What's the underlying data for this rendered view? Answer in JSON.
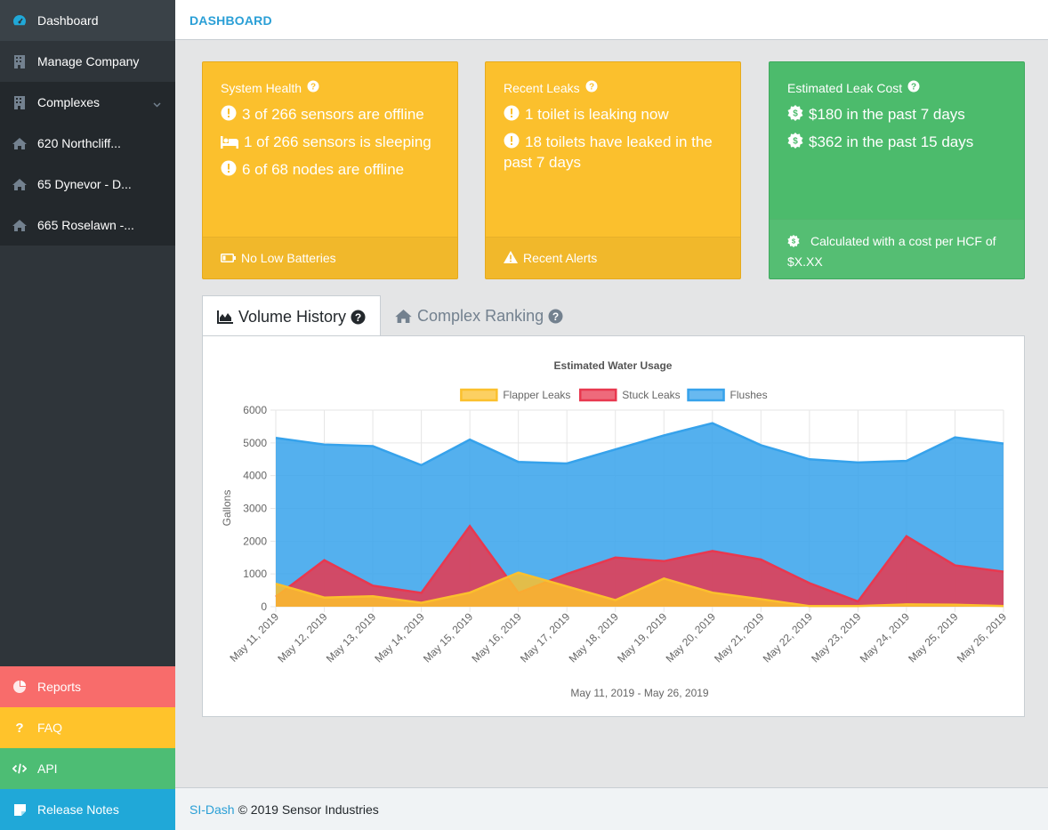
{
  "sidebar": {
    "items": [
      {
        "label": "Dashboard",
        "icon": "speedometer-icon"
      },
      {
        "label": "Manage Company",
        "icon": "building-icon"
      },
      {
        "label": "Complexes",
        "icon": "building-icon"
      },
      {
        "label": "620 Northcliff...",
        "icon": "home-icon"
      },
      {
        "label": "65 Dynevor - D...",
        "icon": "home-icon"
      },
      {
        "label": "665 Roselawn -...",
        "icon": "home-icon"
      }
    ],
    "bottom": [
      {
        "label": "Reports",
        "color": "#f86c6b"
      },
      {
        "label": "FAQ",
        "color": "#ffc32b"
      },
      {
        "label": "API",
        "color": "#4dbd74"
      },
      {
        "label": "Release Notes",
        "color": "#20a8d8"
      }
    ]
  },
  "header": {
    "title": "DASHBOARD"
  },
  "cards": {
    "system_health": {
      "title": "System Health",
      "lines": [
        "3 of 266 sensors are offline",
        "1 of 266 sensors is sleeping",
        "6 of 68 nodes are offline"
      ],
      "footer": "No Low Batteries"
    },
    "recent_leaks": {
      "title": "Recent Leaks",
      "lines": [
        "1 toilet is leaking now",
        "18 toilets have leaked in the past 7 days"
      ],
      "footer": "Recent Alerts"
    },
    "leak_cost": {
      "title": "Estimated Leak Cost",
      "lines": [
        "$180 in the past 7 days",
        "$362 in the past 15 days"
      ],
      "footer": "Calculated with a cost per HCF of $X.XX"
    }
  },
  "tabs": {
    "volume_history": "Volume History",
    "complex_ranking": "Complex Ranking"
  },
  "chart_data": {
    "type": "area",
    "title": "Estimated Water Usage",
    "ylabel": "Gallons",
    "xlabel": "May 11, 2019 - May 26, 2019",
    "ylim": [
      0,
      6000
    ],
    "yticks": [
      0,
      1000,
      2000,
      3000,
      4000,
      5000,
      6000
    ],
    "categories": [
      "May 11, 2019",
      "May 12, 2019",
      "May 13, 2019",
      "May 14, 2019",
      "May 15, 2019",
      "May 16, 2019",
      "May 17, 2019",
      "May 18, 2019",
      "May 19, 2019",
      "May 20, 2019",
      "May 21, 2019",
      "May 22, 2019",
      "May 23, 2019",
      "May 24, 2019",
      "May 25, 2019",
      "May 26, 2019"
    ],
    "series": [
      {
        "name": "Flushes",
        "color": "#36a2eb",
        "values": [
          5150,
          4950,
          4900,
          4320,
          5100,
          4420,
          4370,
          4800,
          5230,
          5600,
          4930,
          4500,
          4400,
          4450,
          5170,
          4980
        ]
      },
      {
        "name": "Stuck Leaks",
        "color": "#e8384f",
        "values": [
          300,
          1420,
          640,
          420,
          2460,
          420,
          1000,
          1500,
          1390,
          1700,
          1440,
          720,
          160,
          2150,
          1260,
          1070
        ]
      },
      {
        "name": "Flapper Leaks",
        "color": "#fbc02d",
        "values": [
          700,
          280,
          320,
          120,
          430,
          1040,
          620,
          200,
          860,
          430,
          230,
          20,
          20,
          70,
          60,
          20
        ]
      }
    ],
    "legend": [
      "Flapper Leaks",
      "Stuck Leaks",
      "Flushes"
    ],
    "legend_position": "top"
  },
  "footer": {
    "brand": "SI-Dash",
    "text": "© 2019 Sensor Industries"
  }
}
